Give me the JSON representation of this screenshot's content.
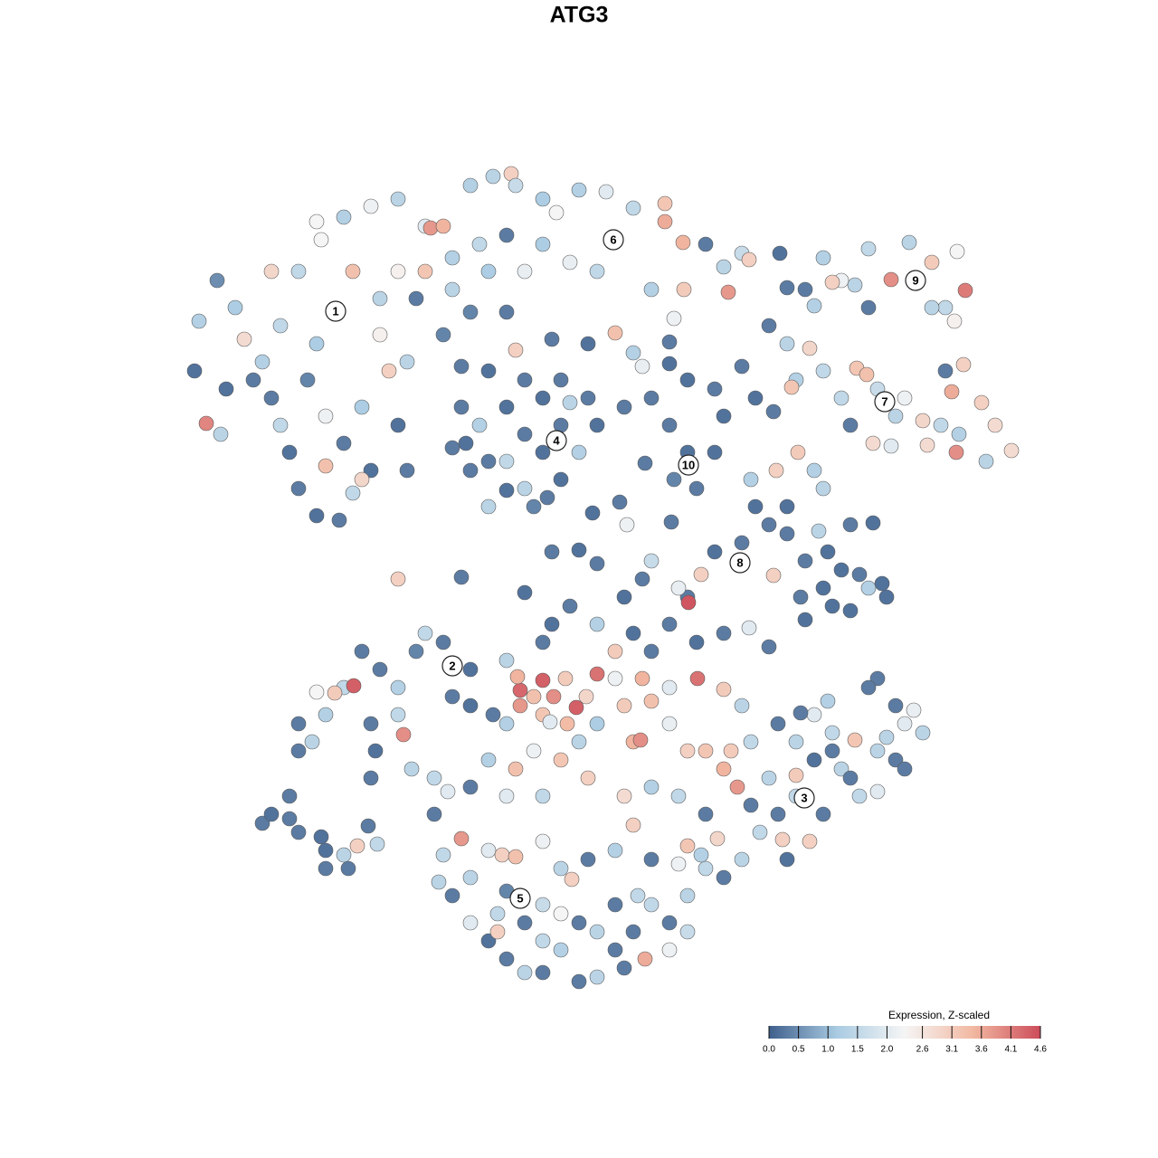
{
  "chart_data": {
    "type": "scatter",
    "title": "ATG3",
    "x": [
      -41.2,
      -39.6,
      -42.5,
      -42,
      -40,
      -38,
      -37,
      -35,
      -34,
      -33,
      -32,
      -31,
      -29,
      -26.5,
      -25,
      -23,
      -24,
      -21,
      -22,
      -27,
      -29,
      -30,
      -28,
      -26,
      -28,
      -24,
      -34,
      -31,
      -28.5,
      -25,
      -22,
      -36,
      -33,
      -39,
      -20,
      -19,
      -20,
      -29,
      -26,
      -23,
      -20,
      -17,
      -16.4,
      -15,
      -12,
      -9.5,
      -7.5,
      -7,
      -4,
      -2.5,
      0,
      3,
      6,
      9.5,
      9.5,
      11.5,
      14,
      16,
      18,
      18.8,
      16.5,
      11.6,
      8,
      2,
      -1,
      -4,
      -8,
      -11,
      -14,
      -17,
      -20,
      -18,
      -14,
      -10,
      -6,
      -12,
      -7,
      -3,
      1,
      4,
      6,
      7,
      10.5,
      10,
      -15,
      -19,
      -13,
      -8,
      -13,
      -11,
      -12,
      -10,
      -8,
      -6,
      -4,
      -2,
      0,
      -2,
      -5,
      -8,
      -4,
      1,
      -10,
      1.5,
      4.5,
      5.3,
      -6,
      -10,
      -6,
      -2,
      -12.5,
      -3.5,
      -14,
      -8,
      2,
      -1,
      5,
      8,
      12,
      15,
      10,
      12,
      13,
      10.5,
      15,
      7.3,
      10,
      16,
      18,
      22.2,
      25,
      27,
      29,
      28,
      30.5,
      32,
      34.5,
      36.5,
      39,
      41.8,
      42.7,
      40.5,
      41.5,
      42.5,
      40.5,
      26,
      23,
      32,
      39,
      21,
      23,
      24,
      23.5,
      25.5,
      27,
      29,
      30.7,
      31.8,
      33,
      35,
      36,
      38,
      40,
      41.2,
      41.7,
      44.5,
      46,
      47.8,
      45,
      42,
      38.5,
      30,
      32.5,
      34.5,
      24.2,
      21.8,
      26,
      27,
      21.5,
      19.5,
      19,
      19.5,
      21,
      23,
      26.5,
      30,
      32.5,
      25,
      27,
      29,
      32,
      34,
      25,
      30,
      21.5,
      18,
      15,
      13.5,
      12,
      28,
      31,
      33.5,
      23,
      27.5,
      24.5,
      7,
      5,
      8,
      11,
      12.1,
      10,
      6,
      2,
      -1,
      -3,
      -4,
      8,
      13,
      16,
      18.8,
      21,
      4,
      -3,
      -6,
      2,
      0,
      -13,
      10.2,
      -31,
      -29.5,
      -28,
      -26,
      -24.9,
      -27,
      -29,
      -24,
      -22,
      -20,
      -18,
      -15,
      -17,
      -23,
      -22.5,
      -23,
      -20,
      -19.4,
      -18.5,
      -16,
      -31,
      -14,
      -12,
      -9.5,
      -8,
      -12,
      4,
      7,
      10,
      13.1,
      16,
      18,
      5,
      8,
      2,
      6,
      6.8,
      10,
      12,
      14,
      16.8,
      19,
      16,
      17.5,
      0,
      -2,
      -5,
      -7,
      -10,
      -12,
      -8,
      -4,
      1,
      5,
      8,
      11,
      14,
      22,
      24,
      26,
      28,
      30.5,
      33,
      36,
      38,
      33,
      35,
      37,
      29,
      31,
      33,
      24,
      22,
      20,
      22.5,
      25.5,
      18,
      16,
      14,
      12,
      21,
      24,
      27,
      27.5,
      24.5,
      35,
      15.3,
      13.5,
      30,
      26,
      32,
      36,
      23,
      19,
      28,
      34,
      -16,
      -14.5,
      -15,
      -13,
      -15.5,
      -14,
      -12,
      -10,
      -8.5,
      -7,
      -4,
      -2,
      -0.8,
      1,
      4,
      6,
      8,
      11,
      12,
      10,
      12,
      10,
      7.3,
      5,
      2,
      0,
      -4,
      -6,
      -8,
      -10,
      -12,
      -9,
      -6,
      -4,
      -2,
      0,
      2,
      4,
      6,
      8,
      -8,
      -4,
      -2,
      4,
      -9,
      6.5,
      -35,
      -34,
      -32,
      -31,
      -28.5,
      -28,
      -26,
      -24.5,
      -25.5,
      -23.3,
      -22.3,
      -28,
      -32,
      -6.5,
      -4,
      -2.8,
      -0.3,
      2,
      -6.8,
      -5,
      -1.5,
      0.8,
      -4,
      -8,
      -6.5,
      -3.2,
      -1.3
    ],
    "y": [
      17.2,
      16,
      23,
      28.5,
      33,
      30,
      26.5,
      24,
      20,
      17,
      14,
      10,
      7,
      6.5,
      9.5,
      12,
      19,
      23,
      27,
      29.5,
      26,
      22,
      18,
      15,
      12.5,
      11,
      34,
      34,
      37.5,
      34,
      31,
      22,
      28,
      21,
      17,
      12,
      0,
      39.5,
      40,
      41.2,
      42,
      39,
      38.8,
      39,
      43.5,
      44.5,
      44.8,
      43.5,
      42,
      40.5,
      43,
      42.8,
      41,
      41.5,
      39.5,
      37.2,
      37,
      34.5,
      36,
      35.3,
      31.7,
      32,
      32,
      34,
      35,
      37,
      38,
      37,
      35.5,
      34,
      34,
      31,
      32,
      34,
      34,
      29.5,
      25.3,
      26.5,
      26,
      27.2,
      25,
      23.5,
      28.8,
      26.2,
      27,
      24,
      23.5,
      29.5,
      19,
      17,
      12,
      8,
      19,
      22,
      20,
      17,
      14,
      11,
      8,
      13,
      14,
      20,
      23,
      7.3,
      8.5,
      6,
      16,
      13,
      10,
      22,
      15,
      9,
      14.5,
      9.8,
      17,
      19.5,
      19,
      20,
      22,
      21,
      17,
      14,
      10,
      11,
      14,
      12.8,
      23.8,
      18,
      23.5,
      36,
      32,
      35.5,
      33,
      32.8,
      32.5,
      36.5,
      33.1,
      37.2,
      35,
      36.2,
      31.9,
      30,
      28.5,
      23.7,
      23,
      30.2,
      32.2,
      30,
      30,
      28,
      26,
      22,
      21.2,
      25.5,
      23,
      20,
      23.3,
      22.6,
      21,
      18,
      20,
      17.5,
      17,
      20.7,
      14,
      19.5,
      17,
      14.2,
      13,
      16,
      14.8,
      17,
      15,
      14.7,
      14,
      12,
      12,
      10,
      18.5,
      20,
      11,
      8,
      6,
      8,
      5.3,
      6,
      6.2,
      2,
      -1,
      1,
      -1,
      -2,
      -4.5,
      -3.5,
      0.4,
      4,
      3,
      0.5,
      -2,
      -3,
      0.5,
      -0.5,
      5,
      3,
      -2,
      0,
      -2,
      2,
      -1,
      -2.6,
      -5,
      -6,
      -5,
      -3,
      -5,
      -7,
      -8,
      -7,
      -6,
      -5.4,
      -7.5,
      -8,
      3,
      -1.5,
      1.7,
      3.2,
      0.2,
      6.3,
      -16,
      -18,
      -15,
      -12,
      -11.8,
      -12.6,
      -12.5,
      -8,
      -10,
      -12,
      -8,
      -7,
      -6,
      -16,
      -19,
      -22,
      -15,
      -17.2,
      -21,
      -22,
      -19,
      -13,
      -14,
      -15,
      -9,
      -10,
      -11,
      -11,
      -12,
      -11,
      -12.2,
      -14,
      -14,
      -13.5,
      -16,
      -18,
      -17.8,
      -16,
      -19,
      -19,
      -19,
      -18,
      -21,
      -23,
      -18,
      -20,
      -19,
      -21,
      -20,
      -23,
      -24,
      -24,
      -22,
      -24,
      -23,
      -24,
      -26,
      -16,
      -18,
      -15,
      -17,
      -17.8,
      -19,
      -16,
      -17,
      -11,
      -14,
      -14.5,
      -21,
      -24,
      -23.5,
      -24,
      -26,
      -28,
      -28.8,
      -29,
      -31,
      -33,
      -32,
      -29.5,
      -22,
      -21.7,
      -26,
      -13.5,
      -14.8,
      -20,
      -28.7,
      -30.5,
      -22,
      -20,
      -12,
      -21,
      -31,
      -25,
      -19,
      -17.5,
      -26,
      -23.5,
      -30.5,
      -28.7,
      -33.5,
      -35,
      -33,
      -30,
      -30.5,
      -30.7,
      -29,
      -32,
      -33.2,
      -31,
      -30,
      -27.2,
      -31,
      -31.5,
      -35,
      -38,
      -39,
      -41,
      -42,
      -43,
      -44,
      -44.5,
      -43.5,
      -43.5,
      -42,
      -40,
      -38,
      -37,
      -38,
      -36,
      -37,
      -38,
      -39,
      -36,
      -39,
      -36,
      -34.5,
      -40,
      -41,
      -41,
      -39,
      -35,
      -27,
      -26,
      -24,
      -28,
      -28.5,
      -32,
      -30.5,
      -29.5,
      -32,
      -27.3,
      -29.3,
      -30,
      -26.5,
      -12.3,
      -11.2,
      -13,
      -14.2,
      -10.5,
      -10.8,
      -13,
      -11,
      -13,
      -15,
      -16,
      -14,
      -15.8,
      -16
    ],
    "values": [
      4.0,
      1.4,
      0.2,
      1.3,
      0.5,
      1.2,
      2.8,
      1.3,
      0.3,
      1.5,
      0.2,
      0.3,
      0.2,
      0.3,
      1.5,
      0.2,
      1.2,
      3.0,
      2.4,
      2.3,
      1.2,
      0.4,
      2.2,
      0.3,
      3.3,
      2.9,
      2.9,
      1.5,
      2.3,
      3.3,
      1.4,
      0.3,
      1.5,
      0.2,
      0.2,
      0.3,
      3.0,
      2.3,
      1.3,
      2.2,
      1.4,
      2.0,
      3.8,
      3.5,
      1.3,
      1.4,
      3.0,
      1.6,
      1.2,
      2.3,
      1.3,
      2.0,
      1.5,
      3.2,
      3.6,
      3.5,
      0.3,
      1.4,
      1.6,
      3.0,
      3.8,
      3.1,
      1.3,
      1.5,
      2.1,
      1.2,
      0.3,
      1.5,
      1.3,
      3.2,
      2.4,
      0.3,
      1.4,
      1.2,
      2.1,
      0.4,
      3.0,
      0.3,
      0.2,
      3.3,
      1.3,
      2.1,
      2.2,
      0.3,
      0.4,
      1.4,
      0.3,
      0.3,
      0.3,
      1.3,
      0.3,
      1.4,
      0.2,
      0.3,
      0.2,
      0.3,
      1.3,
      0.2,
      0.4,
      1.5,
      0.2,
      0.3,
      0.2,
      0.2,
      0.3,
      2.2,
      0.3,
      0.3,
      1.4,
      0.3,
      0.2,
      0.3,
      0.3,
      0.2,
      0.2,
      1.4,
      0.3,
      0.3,
      0.2,
      0.3,
      0.3,
      0.2,
      0.3,
      0.4,
      0.2,
      0.3,
      0.2,
      0.2,
      0.3,
      0.2,
      0.3,
      1.3,
      2.2,
      3.0,
      1.4,
      1.5,
      3.9,
      1.4,
      3.1,
      2.3,
      4.1,
      1.5,
      2.4,
      3.0,
      0.3,
      1.3,
      0.3,
      0.3,
      1.4,
      0.3,
      1.4,
      1.3,
      3.2,
      2.9,
      1.5,
      1.5,
      3.2,
      3.3,
      1.6,
      1.4,
      2.2,
      2.9,
      1.5,
      3.6,
      3.9,
      3.0,
      2.8,
      2.8,
      1.4,
      1.3,
      2.8,
      0.3,
      2.8,
      2.0,
      3.1,
      3.0,
      1.3,
      1.4,
      0.3,
      0.2,
      1.3,
      0.2,
      0.3,
      0.2,
      1.4,
      0.3,
      0.2,
      0.3,
      0.2,
      0.2,
      1.3,
      0.2,
      0.2,
      0.2,
      3.0,
      0.3,
      0.2,
      3.0,
      0.3,
      0.2,
      0.3,
      0.2,
      0.3,
      0.2,
      0.3,
      0.3,
      0.2,
      1.6,
      2.1,
      4.5,
      0.3,
      0.2,
      1.3,
      0.3,
      0.2,
      0.3,
      0.3,
      0.2,
      0.3,
      2.0,
      0.3,
      3.1,
      0.3,
      0.2,
      0.3,
      0.2,
      0.3,
      0.3,
      0.3,
      1.4,
      1.3,
      1.5,
      4.4,
      3.1,
      2.3,
      0.3,
      0.3,
      1.3,
      0.4,
      0.3,
      1.5,
      0.3,
      0.2,
      0.3,
      1.5,
      3.9,
      1.4,
      1.5,
      0.3,
      0.3,
      0.2,
      0.3,
      1.4,
      0.2,
      2.2,
      3.5,
      2.0,
      4.2,
      3.1,
      1.4,
      3.1,
      3.3,
      1.2,
      3.5,
      3.9,
      2.1,
      3.0,
      3.2,
      3.1,
      1.5,
      3.5,
      3.8,
      1.4,
      3.2,
      2.2,
      3.3,
      1.3,
      0.3,
      2.0,
      1.5,
      3.0,
      2.8,
      1.3,
      1.5,
      0.3,
      0.3,
      1.4,
      2.0,
      1.5,
      3.2,
      1.4,
      2.0,
      1.4,
      0.3,
      0.3,
      2.1,
      1.4,
      1.5,
      2.0,
      1.5,
      0.3,
      1.5,
      3.0,
      3.0,
      1.4,
      0.3,
      1.5,
      3.2,
      1.4,
      3.1,
      0.3,
      1.3,
      0.3,
      0.3,
      2.9,
      1.3,
      0.3,
      0.2,
      0.3,
      0.3,
      0.2,
      0.3,
      0.3,
      1.4,
      0.3,
      2.0,
      1.5,
      3.8,
      1.4,
      0.3,
      1.4,
      2.0,
      3.0,
      3.3,
      2.2,
      1.4,
      3.0,
      0.3,
      1.3,
      3.0,
      0.3,
      2.2,
      1.4,
      0.3,
      1.6,
      2.2,
      3.6,
      0.3,
      1.4,
      0.3,
      0.3,
      1.4,
      0.3,
      0.2,
      2.0,
      1.5,
      0.3,
      1.6,
      2.3,
      0.3,
      1.4,
      0.3,
      0.3,
      1.5,
      0.4,
      1.5,
      1.3,
      0.3,
      3.0,
      1.5,
      0.3,
      0.2,
      0.3,
      0.3,
      0.2,
      0.3,
      1.4,
      3.0,
      0.3,
      0.3,
      1.5,
      0.2,
      0.3,
      4.3,
      4.4,
      3.9,
      4.4,
      4.2,
      3.5,
      3.3,
      3.1,
      2.9,
      3.2,
      1.3,
      3.8,
      2.0,
      3.4
    ],
    "clusters": {
      "labels": [
        "1",
        "2",
        "3",
        "4",
        "5",
        "6",
        "7",
        "8",
        "9",
        "10"
      ],
      "x": [
        -26.9,
        -14.0,
        24.9,
        -2.5,
        -6.5,
        3.8,
        33.8,
        17.8,
        37.2,
        12.1
      ],
      "y": [
        29.6,
        -9.6,
        -24.2,
        15.3,
        -35.3,
        37.5,
        19.6,
        1.8,
        33.0,
        12.6
      ]
    },
    "colorscale": {
      "title": "Expression, Z-scaled",
      "lim": [
        0,
        4.6
      ],
      "colors": [
        "#3f5f8c",
        "#a9cbe2",
        "#f5f5f5",
        "#f2b9a2",
        "#cc4c5a"
      ],
      "ticks": [
        {
          "value": 0,
          "label": "0.0"
        },
        0.5,
        {
          "value": 1,
          "label": "1.0"
        },
        1.5,
        {
          "value": 2,
          "label": "2.0"
        },
        2.6,
        3.1,
        3.6,
        4.1,
        4.6
      ]
    }
  }
}
